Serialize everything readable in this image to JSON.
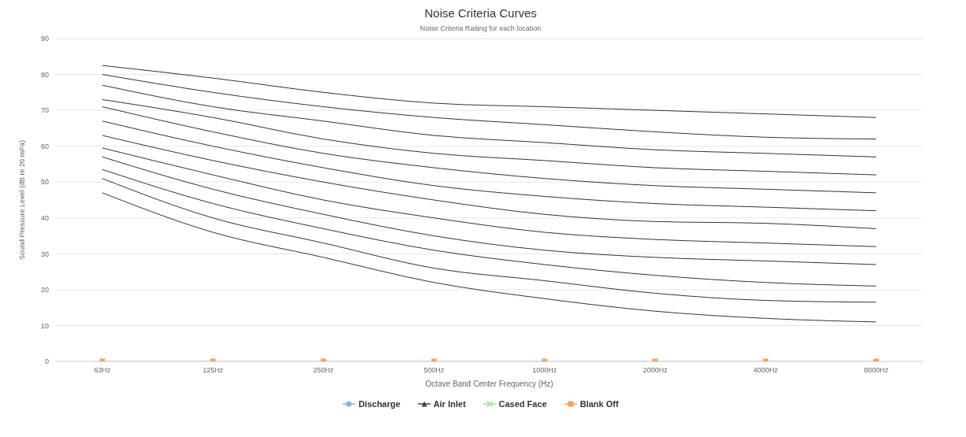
{
  "chart_data": {
    "type": "line",
    "title": "Noise Criteria Curves",
    "subtitle": "Noise Criteria Raiting for each location",
    "xlabel": "Octave Band Center Frequency (Hz)",
    "ylabel": "Sound Pressure Level (dB re 20 mPa)",
    "categories": [
      "63Hz",
      "125Hz",
      "250Hz",
      "500Hz",
      "1000Hz",
      "2000Hz",
      "4000Hz",
      "8000Hz"
    ],
    "ylim": [
      0,
      90
    ],
    "yticks": [
      0,
      10,
      20,
      30,
      40,
      50,
      60,
      70,
      80,
      90
    ],
    "grid": "y",
    "legend": "bottom",
    "line_style": "solid",
    "series": [
      {
        "color": "#333333",
        "marker": "none",
        "values": [
          82.5,
          79,
          75,
          72,
          71,
          70,
          69,
          68
        ]
      },
      {
        "color": "#333333",
        "marker": "none",
        "values": [
          80,
          75,
          71,
          68,
          66,
          64,
          62.5,
          62
        ]
      },
      {
        "color": "#333333",
        "marker": "none",
        "values": [
          77,
          71,
          67,
          63,
          61,
          59,
          58,
          57
        ]
      },
      {
        "color": "#333333",
        "marker": "none",
        "values": [
          73,
          68,
          62,
          58,
          56,
          54,
          53,
          52
        ]
      },
      {
        "color": "#333333",
        "marker": "none",
        "values": [
          71,
          64,
          58,
          54,
          51,
          49,
          48,
          47
        ]
      },
      {
        "color": "#333333",
        "marker": "none",
        "values": [
          67,
          60,
          54,
          49,
          46,
          44,
          43,
          42
        ]
      },
      {
        "color": "#333333",
        "marker": "none",
        "values": [
          63,
          56,
          50,
          45,
          41,
          39,
          38.5,
          37
        ]
      },
      {
        "color": "#333333",
        "marker": "none",
        "values": [
          59.5,
          52,
          45,
          40,
          36,
          34,
          33,
          32
        ]
      },
      {
        "color": "#333333",
        "marker": "none",
        "values": [
          57,
          48,
          41,
          35,
          31,
          29,
          28,
          27
        ]
      },
      {
        "color": "#333333",
        "marker": "none",
        "values": [
          53.5,
          44,
          37,
          31,
          27,
          24,
          22,
          21
        ]
      },
      {
        "color": "#333333",
        "marker": "none",
        "values": [
          51,
          40,
          33,
          26,
          22.5,
          19,
          17,
          16.5
        ]
      },
      {
        "color": "#333333",
        "marker": "none",
        "values": [
          47,
          36,
          29,
          22,
          17.5,
          14,
          12,
          11
        ]
      },
      {
        "name": "Discharge",
        "color": "#7cb5ec",
        "marker": "circle",
        "values": [
          null,
          null,
          null,
          null,
          null,
          null,
          null,
          null
        ]
      },
      {
        "name": "Air Inlet",
        "color": "#434348",
        "marker": "triangle",
        "values": [
          null,
          null,
          null,
          null,
          null,
          null,
          null,
          null
        ]
      },
      {
        "name": "Cased Face",
        "color": "#90ed7d",
        "marker": "cross",
        "values": [
          null,
          null,
          null,
          null,
          null,
          null,
          null,
          null
        ]
      },
      {
        "name": "Blank Off",
        "color": "#f7a35c",
        "marker": "square",
        "values": [
          0,
          0,
          0,
          0,
          0,
          0,
          0,
          0
        ]
      }
    ]
  }
}
